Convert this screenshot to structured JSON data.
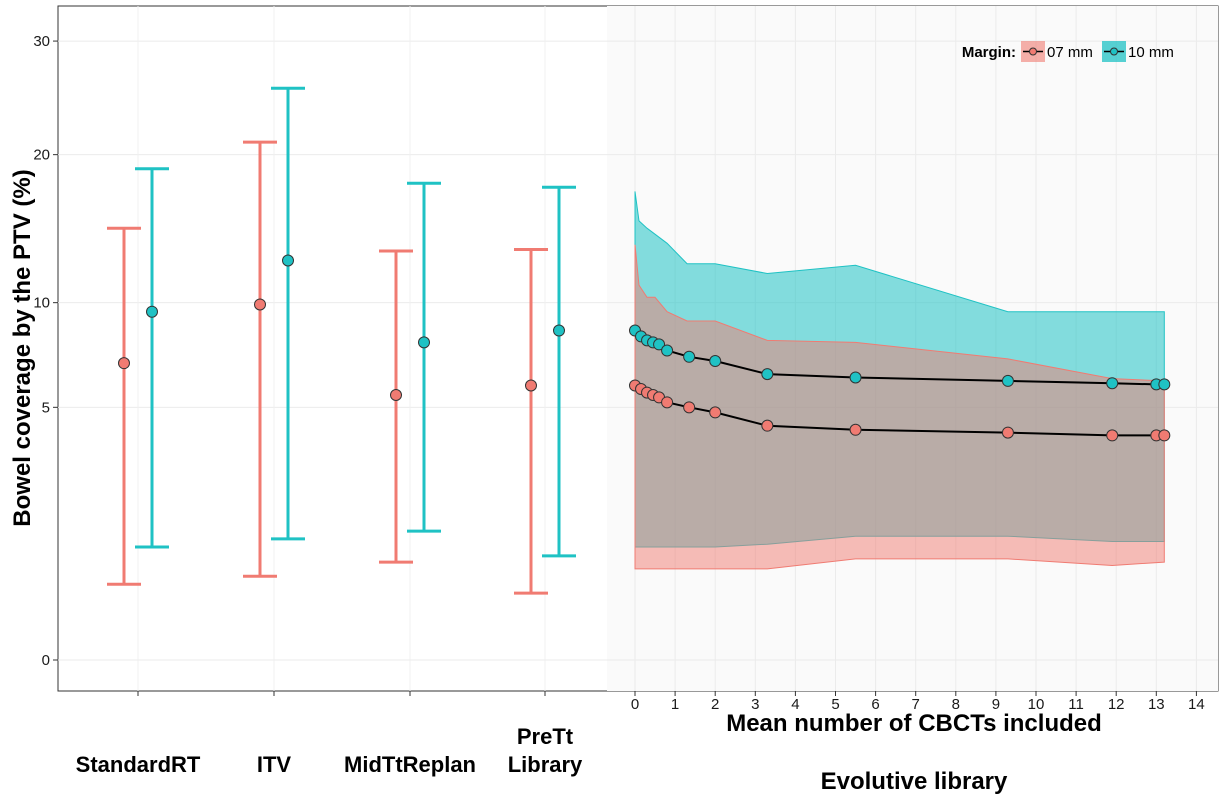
{
  "chart_data": {
    "type": "line",
    "ylabel": "Bowel coverage by the PTV (%)",
    "yscale": "sqrt",
    "ylim": [
      0,
      30
    ],
    "yticks": [
      0,
      5,
      10,
      20,
      30
    ],
    "legend": {
      "title": "Margin:",
      "position": "top-right",
      "entries": [
        "07 mm",
        "10 mm"
      ]
    },
    "colors": {
      "07 mm": "#f07b72",
      "10 mm": "#1fc2c4"
    },
    "categorical_panel": {
      "categories": [
        "StandardRT",
        "ITV",
        "MidTtReplan",
        "PreTt\nLibrary"
      ],
      "series": [
        {
          "name": "07 mm",
          "points": [
            6.9,
            9.9,
            5.5,
            5.9
          ],
          "lower": [
            0.45,
            0.55,
            0.75,
            0.35
          ],
          "upper": [
            14.6,
            21.0,
            13.1,
            13.2
          ]
        },
        {
          "name": "10 mm",
          "points": [
            9.5,
            12.5,
            7.9,
            8.5
          ],
          "lower": [
            1.0,
            1.15,
            1.3,
            0.85
          ],
          "upper": [
            18.9,
            25.6,
            17.8,
            17.5
          ]
        }
      ]
    },
    "evolutive_panel": {
      "panel_label": "Evolutive library",
      "xlabel": "Mean number of CBCTs included",
      "xlim": [
        -0.4,
        14.4
      ],
      "xticks": [
        0,
        1,
        2,
        3,
        4,
        5,
        6,
        7,
        8,
        9,
        10,
        11,
        12,
        13,
        14
      ],
      "series": [
        {
          "name": "07 mm",
          "x": [
            0,
            0.15,
            0.3,
            0.45,
            0.6,
            0.8,
            1.35,
            2.0,
            3.3,
            5.5,
            9.3,
            11.9,
            13.0,
            13.2
          ],
          "y": [
            5.9,
            5.75,
            5.6,
            5.5,
            5.4,
            5.2,
            5.0,
            4.8,
            4.3,
            4.15,
            4.05,
            3.95,
            3.95,
            3.95
          ],
          "band_x": [
            0,
            0.1,
            0.3,
            0.5,
            0.8,
            1.3,
            2.0,
            3.3,
            5.5,
            9.3,
            11.9,
            13.2
          ],
          "band_lower": [
            0.65,
            0.65,
            0.65,
            0.65,
            0.65,
            0.65,
            0.65,
            0.65,
            0.8,
            0.8,
            0.7,
            0.75
          ],
          "band_upper": [
            13.5,
            11.0,
            10.3,
            10.3,
            9.5,
            9.0,
            9.0,
            8.0,
            7.9,
            7.1,
            6.2,
            6.1
          ]
        },
        {
          "name": "10 mm",
          "x": [
            0,
            0.15,
            0.3,
            0.45,
            0.6,
            0.8,
            1.35,
            2.0,
            3.3,
            5.5,
            9.3,
            11.9,
            13.0,
            13.2
          ],
          "y": [
            8.5,
            8.2,
            8.0,
            7.9,
            7.8,
            7.5,
            7.2,
            7.0,
            6.4,
            6.25,
            6.1,
            6.0,
            5.95,
            5.95
          ],
          "band_x": [
            0,
            0.1,
            0.3,
            0.5,
            0.8,
            1.3,
            2.0,
            3.3,
            5.5,
            9.3,
            11.9,
            13.2
          ],
          "band_lower": [
            1.0,
            1.0,
            1.0,
            1.0,
            1.0,
            1.0,
            1.0,
            1.05,
            1.2,
            1.2,
            1.1,
            1.1
          ],
          "band_upper": [
            17.2,
            15.1,
            14.6,
            14.2,
            13.6,
            12.3,
            12.3,
            11.7,
            12.2,
            9.5,
            9.5,
            9.5
          ]
        }
      ]
    }
  }
}
